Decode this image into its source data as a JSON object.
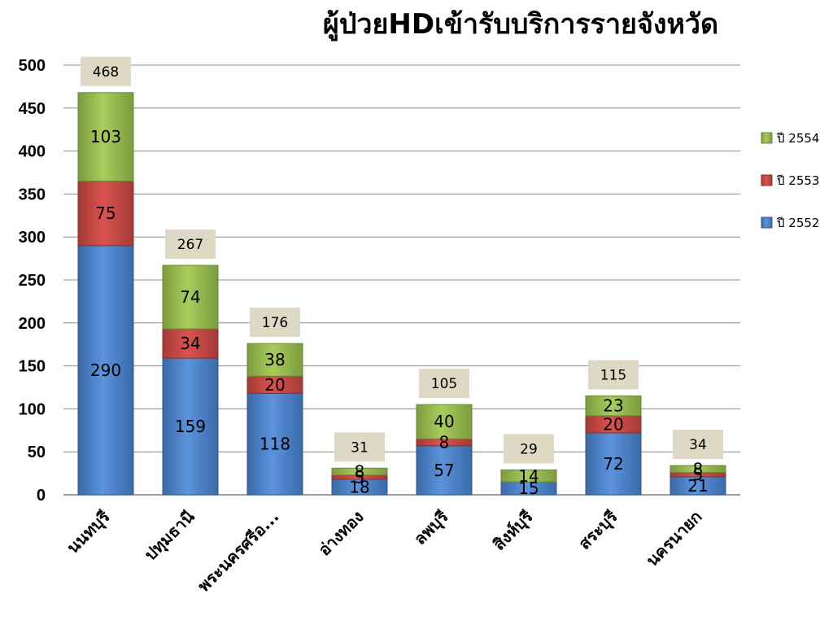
{
  "chart_data": {
    "type": "bar",
    "stacked": true,
    "title": "ผู้ป่วยHDเข้ารับบริการรายจังหวัด",
    "categories": [
      "นนทบุรี",
      "ปทุมธานี",
      "พระนครศรีอ...",
      "อ่างทอง",
      "ลพบุรี",
      "สิงห์บุรี",
      "สระบุรี",
      "นครนายก"
    ],
    "series": [
      {
        "name": "ปี 2552",
        "values": [
          290,
          159,
          118,
          18,
          57,
          15,
          72,
          21
        ],
        "color": "#4f81bd"
      },
      {
        "name": "ปี 2553",
        "values": [
          75,
          34,
          20,
          5,
          8,
          0,
          20,
          5
        ],
        "color": "#c0504d"
      },
      {
        "name": "ปี 2554",
        "values": [
          103,
          74,
          38,
          8,
          40,
          14,
          23,
          8
        ],
        "color": "#9bbb59"
      }
    ],
    "totals": [
      468,
      267,
      176,
      31,
      105,
      29,
      115,
      34
    ],
    "ylim": [
      0,
      500
    ],
    "yticks": [
      0,
      50,
      100,
      150,
      200,
      250,
      300,
      350,
      400,
      450,
      500
    ],
    "grid": true,
    "legend_position": "right",
    "legend_order": [
      "ปี 2554",
      "ปี 2553",
      "ปี 2552"
    ],
    "total_box_color": "#ddd9c4"
  }
}
